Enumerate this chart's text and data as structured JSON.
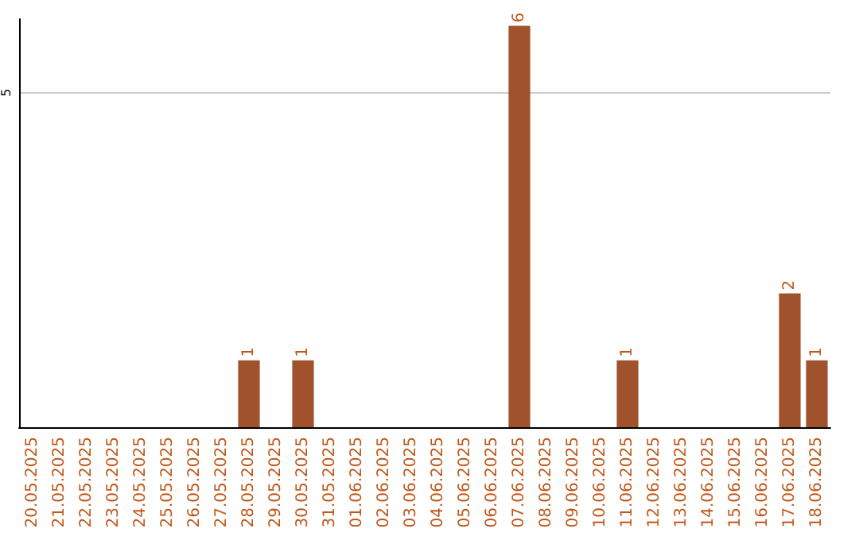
{
  "chart_data": {
    "type": "bar",
    "categories": [
      "20.05.2025",
      "21.05.2025",
      "22.05.2025",
      "23.05.2025",
      "24.05.2025",
      "25.05.2025",
      "26.05.2025",
      "27.05.2025",
      "28.05.2025",
      "29.05.2025",
      "30.05.2025",
      "31.05.2025",
      "01.06.2025",
      "02.06.2025",
      "03.06.2025",
      "04.06.2025",
      "05.06.2025",
      "06.06.2025",
      "07.06.2025",
      "08.06.2025",
      "09.06.2025",
      "10.06.2025",
      "11.06.2025",
      "12.06.2025",
      "13.06.2025",
      "14.06.2025",
      "15.06.2025",
      "16.06.2025",
      "17.06.2025",
      "18.06.2025"
    ],
    "values": [
      0,
      0,
      0,
      0,
      0,
      0,
      0,
      0,
      1,
      0,
      1,
      0,
      0,
      0,
      0,
      0,
      0,
      0,
      6,
      0,
      0,
      0,
      1,
      0,
      0,
      0,
      0,
      0,
      2,
      1
    ],
    "value_labels": [
      null,
      null,
      null,
      null,
      null,
      null,
      null,
      null,
      "1",
      null,
      "1",
      null,
      null,
      null,
      null,
      null,
      null,
      null,
      "6",
      null,
      null,
      null,
      "1",
      null,
      null,
      null,
      null,
      null,
      "2",
      "1"
    ],
    "color": "#a0522d",
    "ylim": [
      0,
      6.1
    ],
    "yticks": [
      5
    ],
    "grid": "y"
  }
}
